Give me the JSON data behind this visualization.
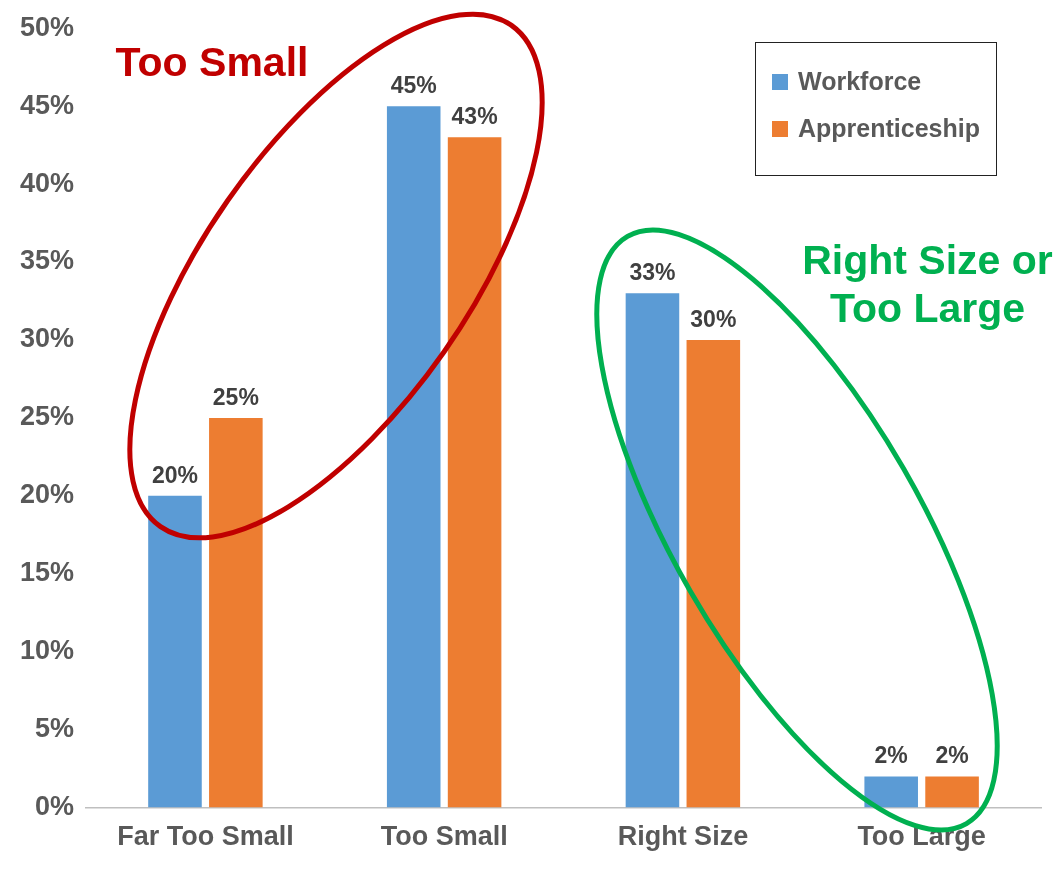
{
  "chart_data": {
    "type": "bar",
    "categories": [
      "Far Too Small",
      "Too Small",
      "Right Size",
      "Too Large"
    ],
    "series": [
      {
        "name": "Workforce",
        "color": "#5b9bd5",
        "values": [
          20,
          45,
          33,
          2
        ]
      },
      {
        "name": "Apprenticeship",
        "color": "#ed7d31",
        "values": [
          25,
          43,
          30,
          2
        ]
      }
    ],
    "ylim": [
      0,
      50
    ],
    "yticks": [
      {
        "value": 0,
        "label": "0%"
      },
      {
        "value": 5,
        "label": "5%"
      },
      {
        "value": 10,
        "label": "10%"
      },
      {
        "value": 15,
        "label": "15%"
      },
      {
        "value": 20,
        "label": "20%"
      },
      {
        "value": 25,
        "label": "25%"
      },
      {
        "value": 30,
        "label": "30%"
      },
      {
        "value": 35,
        "label": "35%"
      },
      {
        "value": 40,
        "label": "40%"
      },
      {
        "value": 45,
        "label": "45%"
      },
      {
        "value": 50,
        "label": "50%"
      }
    ],
    "value_labels": [
      [
        "20%",
        "45%",
        "33%",
        "2%"
      ],
      [
        "25%",
        "43%",
        "30%",
        "2%"
      ]
    ],
    "annotations": [
      "Too Small",
      "Right Size or Too Large"
    ],
    "legend": "top right",
    "grid": false
  }
}
